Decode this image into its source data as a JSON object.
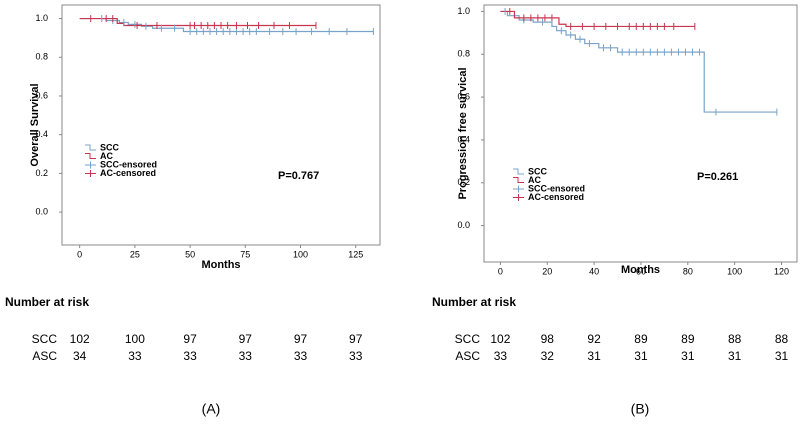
{
  "chart_data": [
    {
      "type": "step",
      "panel_label": "(A)",
      "x_label": "Months",
      "y_label": "Overall Survival",
      "annotation": "P=0.767",
      "xlim": [
        -8,
        136
      ],
      "xticks": [
        0,
        25,
        50,
        75,
        100,
        125
      ],
      "ylim": [
        -0.17,
        1.07
      ],
      "yticks": [
        {
          "value": 0,
          "label": "0.0"
        },
        0.2,
        0.4,
        0.6,
        0.8,
        {
          "value": 1,
          "label": "1.0"
        }
      ],
      "legend": "left",
      "series": [
        {
          "name": "SCC",
          "color": "#7aa3c9",
          "style": "step",
          "x": [
            0,
            12,
            18,
            22,
            28,
            33,
            47,
            133
          ],
          "values": [
            1,
            0.99,
            0.98,
            0.97,
            0.96,
            0.95,
            0.933,
            0.933
          ]
        },
        {
          "name": "AC",
          "color": "#c8354f",
          "style": "step",
          "x": [
            0,
            17,
            20,
            107
          ],
          "values": [
            1,
            0.975,
            0.964,
            0.964
          ]
        },
        {
          "name": "SCC-ensored",
          "color": "#7aa3c9",
          "style": "censored",
          "x": [
            10,
            15,
            20,
            25,
            30,
            37,
            43,
            50,
            53,
            56,
            59,
            62,
            65,
            68,
            71,
            74,
            77,
            80,
            86,
            92,
            98,
            105,
            113,
            121,
            133
          ],
          "values": [
            1,
            0.99,
            0.98,
            0.97,
            0.96,
            0.95,
            0.95,
            0.933,
            0.933,
            0.933,
            0.933,
            0.933,
            0.933,
            0.933,
            0.933,
            0.933,
            0.933,
            0.933,
            0.933,
            0.933,
            0.933,
            0.933,
            0.933,
            0.933,
            0.933
          ]
        },
        {
          "name": "AC-censored",
          "color": "#c8354f",
          "style": "censored",
          "x": [
            5,
            12,
            15,
            26,
            35,
            50,
            52,
            55,
            58,
            61,
            64,
            67,
            71,
            76,
            81,
            88,
            95,
            107
          ],
          "values": [
            1,
            1,
            1,
            0.964,
            0.964,
            0.964,
            0.964,
            0.964,
            0.964,
            0.964,
            0.964,
            0.964,
            0.964,
            0.964,
            0.964,
            0.964,
            0.964,
            0.964
          ]
        }
      ],
      "risk_table": {
        "title": "Number at risk",
        "rows": [
          {
            "name": "SCC",
            "values": [
              102,
              100,
              97,
              97,
              97,
              97
            ]
          },
          {
            "name": "ASC",
            "values": [
              34,
              33,
              33,
              33,
              33,
              33
            ]
          }
        ]
      }
    },
    {
      "type": "step",
      "panel_label": "(B)",
      "x_label": "Months",
      "y_label": "Progression free survical",
      "annotation": "P=0.261",
      "xlim": [
        -7,
        126.6
      ],
      "xticks": [
        0,
        20,
        40,
        60,
        80,
        100,
        120
      ],
      "ylim": [
        -0.17,
        1.03
      ],
      "yticks": [
        {
          "value": 0,
          "label": "0.0"
        },
        0.2,
        0.4,
        0.6,
        0.8,
        {
          "value": 1,
          "label": "1.0"
        }
      ],
      "legend": "left",
      "series": [
        {
          "name": "SCC",
          "color": "#7aa3c9",
          "style": "step",
          "x": [
            0,
            3,
            8,
            14,
            22,
            24,
            28,
            32,
            36,
            42,
            50,
            87,
            118
          ],
          "values": [
            1,
            0.98,
            0.96,
            0.95,
            0.93,
            0.91,
            0.89,
            0.87,
            0.85,
            0.83,
            0.81,
            0.53,
            0.53
          ]
        },
        {
          "name": "AC",
          "color": "#c8354f",
          "style": "step",
          "x": [
            0,
            6,
            25,
            28,
            83
          ],
          "values": [
            1,
            0.97,
            0.94,
            0.93,
            0.93
          ]
        },
        {
          "name": "SCC-ensored",
          "color": "#7aa3c9",
          "style": "censored",
          "x": [
            2,
            10,
            18,
            26,
            30,
            34,
            38,
            44,
            47,
            52,
            55,
            58,
            61,
            64,
            67,
            70,
            73,
            76,
            79,
            82,
            85,
            92,
            118
          ],
          "values": [
            1,
            0.96,
            0.95,
            0.91,
            0.89,
            0.87,
            0.85,
            0.83,
            0.83,
            0.81,
            0.81,
            0.81,
            0.81,
            0.81,
            0.81,
            0.81,
            0.81,
            0.81,
            0.81,
            0.81,
            0.81,
            0.53,
            0.53
          ]
        },
        {
          "name": "AC-censored",
          "color": "#c8354f",
          "style": "censored",
          "x": [
            4,
            10,
            13,
            16,
            19,
            22,
            30,
            35,
            40,
            45,
            50,
            55,
            58,
            61,
            64,
            67,
            70,
            74,
            83
          ],
          "values": [
            1,
            0.97,
            0.97,
            0.97,
            0.97,
            0.97,
            0.93,
            0.93,
            0.93,
            0.93,
            0.93,
            0.93,
            0.93,
            0.93,
            0.93,
            0.93,
            0.93,
            0.93,
            0.93
          ]
        }
      ],
      "risk_table": {
        "title": "Number at risk",
        "rows": [
          {
            "name": "SCC",
            "values": [
              102,
              98,
              92,
              89,
              89,
              88,
              88
            ]
          },
          {
            "name": "ASC",
            "values": [
              33,
              32,
              31,
              31,
              31,
              31,
              31
            ]
          }
        ]
      }
    }
  ]
}
